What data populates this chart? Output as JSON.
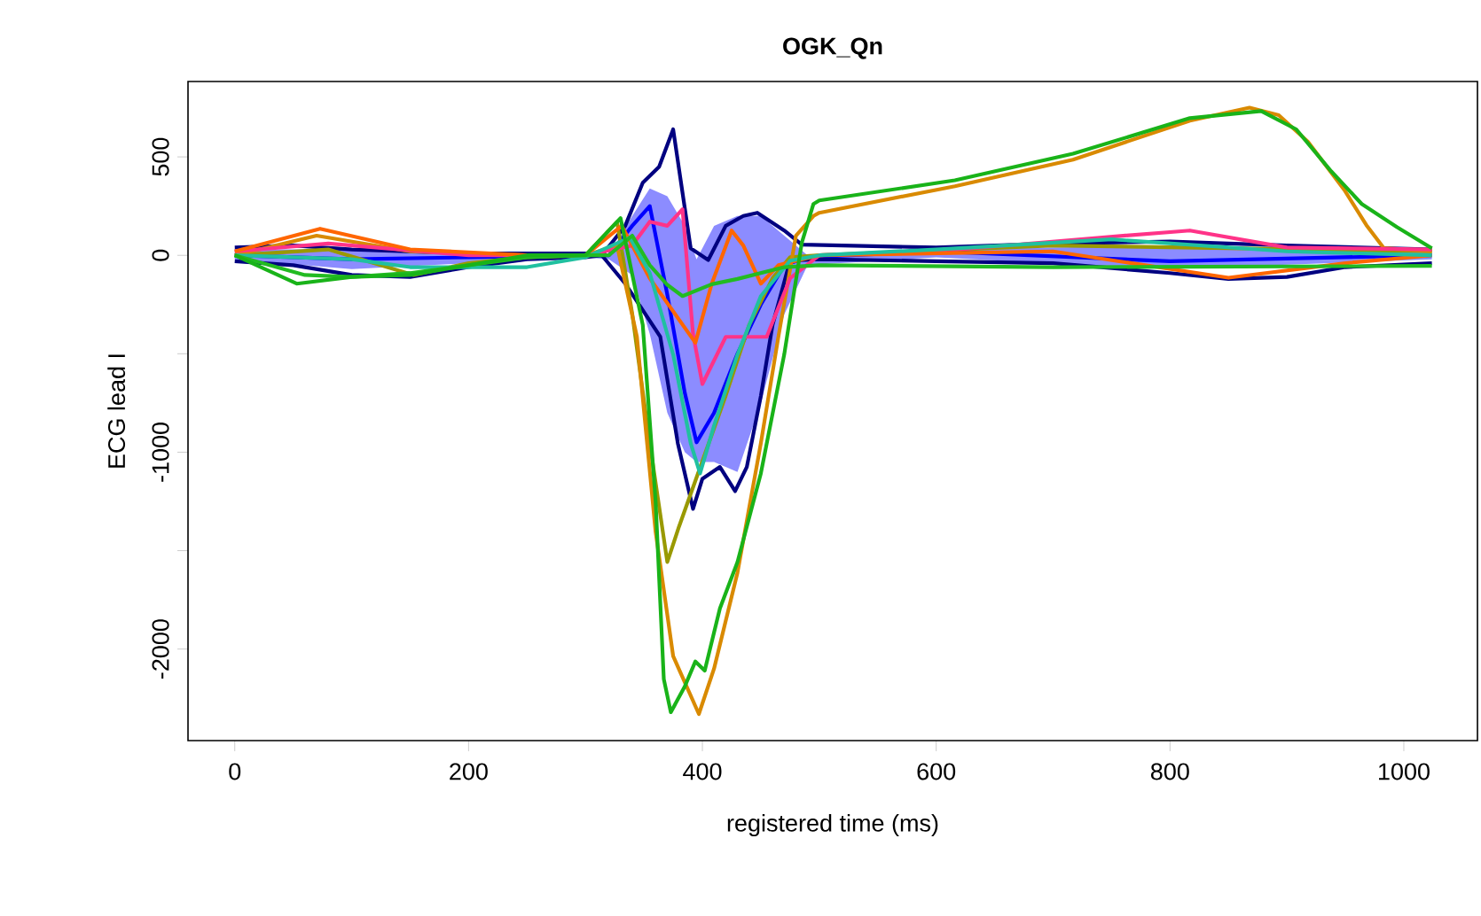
{
  "chart_data": {
    "type": "line",
    "title": "OGK_Qn",
    "xlabel": "registered time (ms)",
    "ylabel": "ECG lead I",
    "xlim": [
      -40,
      1063
    ],
    "ylim": [
      -2465,
      883
    ],
    "xticks": [
      0,
      200,
      400,
      600,
      800,
      1000
    ],
    "yticks": [
      -2000,
      {
        "value": -1500,
        "label": null
      },
      -1000,
      {
        "value": -500,
        "label": null
      },
      0,
      500
    ],
    "series": [
      {
        "color": "#0000ff",
        "x": [
          0,
          100,
          200,
          300,
          320,
          340,
          355,
          370,
          385,
          395,
          410,
          430,
          450,
          470,
          490,
          600,
          800,
          1024
        ],
        "values": [
          0,
          -20,
          -10,
          0,
          0,
          150,
          250,
          -200,
          -700,
          -950,
          -800,
          -500,
          -250,
          -50,
          -10,
          20,
          -30,
          0
        ],
        "lower": [
          -20,
          -70,
          -40,
          -10,
          -20,
          -100,
          -400,
          -800,
          -1000,
          -1050,
          -1050,
          -1100,
          -750,
          -300,
          -50,
          -10,
          -70,
          -20
        ],
        "upper": [
          30,
          30,
          10,
          10,
          0,
          200,
          340,
          300,
          150,
          -20,
          150,
          200,
          200,
          100,
          0,
          30,
          50,
          20
        ]
      },
      {
        "color": "#000080",
        "x": [
          0,
          50,
          100,
          200,
          300,
          314,
          334,
          349,
          363,
          375,
          390,
          405,
          420,
          435,
          447,
          470,
          485,
          600,
          700,
          800,
          900,
          1024
        ],
        "values": [
          40,
          50,
          30,
          10,
          10,
          0,
          150,
          369,
          450,
          640,
          36,
          -24,
          150,
          200,
          216,
          126,
          54,
          40,
          60,
          70,
          50,
          30
        ]
      },
      {
        "color": "#000080",
        "x": [
          0,
          50,
          100,
          150,
          200,
          250,
          300,
          314,
          334,
          364,
          379,
          392,
          400,
          415,
          428,
          438,
          450,
          460,
          475,
          500,
          600,
          700,
          800,
          850,
          900,
          950,
          1024
        ],
        "values": [
          -30,
          -50,
          -100,
          -110,
          -60,
          -20,
          -10,
          0,
          -144,
          -414,
          -955,
          -1288,
          -1135,
          -1075,
          -1198,
          -1075,
          -715,
          -354,
          -27,
          -20,
          -30,
          -40,
          -90,
          -120,
          -110,
          -60,
          -40
        ]
      },
      {
        "color": "#999900",
        "x": [
          0,
          80,
          153,
          200,
          250,
          300,
          327,
          340,
          355,
          370,
          380,
          400,
          420,
          440,
          460,
          475,
          500,
          700,
          1024
        ],
        "values": [
          0,
          30,
          -100,
          -40,
          -10,
          0,
          170,
          -297,
          -955,
          -1558,
          -1378,
          -1045,
          -712,
          -354,
          -117,
          -10,
          0,
          50,
          20
        ]
      },
      {
        "color": "#d98a00",
        "x": [
          0,
          70,
          150,
          250,
          300,
          327,
          344,
          360,
          375,
          397,
          410,
          430,
          450,
          465,
          480,
          495,
          500,
          616,
          717,
          817,
          868,
          893,
          918,
          949,
          968,
          983,
          1024
        ],
        "values": [
          0,
          100,
          20,
          0,
          0,
          50,
          -414,
          -1405,
          -2036,
          -2330,
          -2099,
          -1612,
          -955,
          -414,
          99,
          200,
          216,
          351,
          486,
          684,
          750,
          712,
          577,
          333,
          153,
          36,
          21
        ]
      },
      {
        "color": "#ff3388",
        "x": [
          0,
          80,
          200,
          300,
          340,
          355,
          370,
          383,
          392,
          400,
          420,
          455,
          475,
          500,
          600,
          740,
          817,
          900,
          1024
        ],
        "values": [
          20,
          60,
          0,
          0,
          50,
          171,
          150,
          234,
          -400,
          -654,
          -414,
          -414,
          -117,
          0,
          20,
          90,
          126,
          40,
          30
        ]
      },
      {
        "color": "#ff6600",
        "x": [
          0,
          73,
          150,
          250,
          300,
          331,
          355,
          394,
          408,
          425,
          435,
          450,
          465,
          500,
          700,
          850,
          950,
          1024
        ],
        "values": [
          20,
          135,
          30,
          0,
          0,
          150,
          -117,
          -444,
          -144,
          126,
          50,
          -144,
          -50,
          0,
          20,
          -114,
          -40,
          0
        ]
      },
      {
        "color": "#20c0a0",
        "x": [
          0,
          100,
          150,
          250,
          300,
          338,
          355,
          375,
          390,
          398,
          410,
          430,
          450,
          475,
          500,
          600,
          750,
          900,
          1024
        ],
        "values": [
          0,
          -20,
          -60,
          -60,
          -10,
          90,
          -90,
          -504,
          -955,
          -1108,
          -865,
          -504,
          -207,
          -27,
          0,
          30,
          81,
          20,
          0
        ]
      },
      {
        "color": "#22bb22",
        "x": [
          0,
          60,
          100,
          150,
          250,
          300,
          320,
          340,
          355,
          370,
          383,
          408,
          430,
          470,
          500,
          700,
          1024
        ],
        "values": [
          0,
          -100,
          -110,
          -90,
          -10,
          0,
          0,
          100,
          -50,
          -150,
          -207,
          -147,
          -120,
          -60,
          -50,
          -60,
          -54
        ]
      },
      {
        "color": "#19b319",
        "x": [
          0,
          53,
          100,
          150,
          250,
          300,
          330,
          349,
          360,
          367,
          373,
          385,
          394,
          402,
          415,
          430,
          450,
          470,
          485,
          495,
          500,
          616,
          717,
          817,
          878,
          908,
          938,
          964,
          994,
          1024
        ],
        "values": [
          0,
          -144,
          -110,
          -100,
          0,
          0,
          189,
          -354,
          -1252,
          -2153,
          -2321,
          -2189,
          -2063,
          -2110,
          -1793,
          -1558,
          -1108,
          -504,
          63,
          261,
          279,
          381,
          516,
          697,
          733,
          640,
          426,
          261,
          144,
          36
        ]
      }
    ]
  }
}
